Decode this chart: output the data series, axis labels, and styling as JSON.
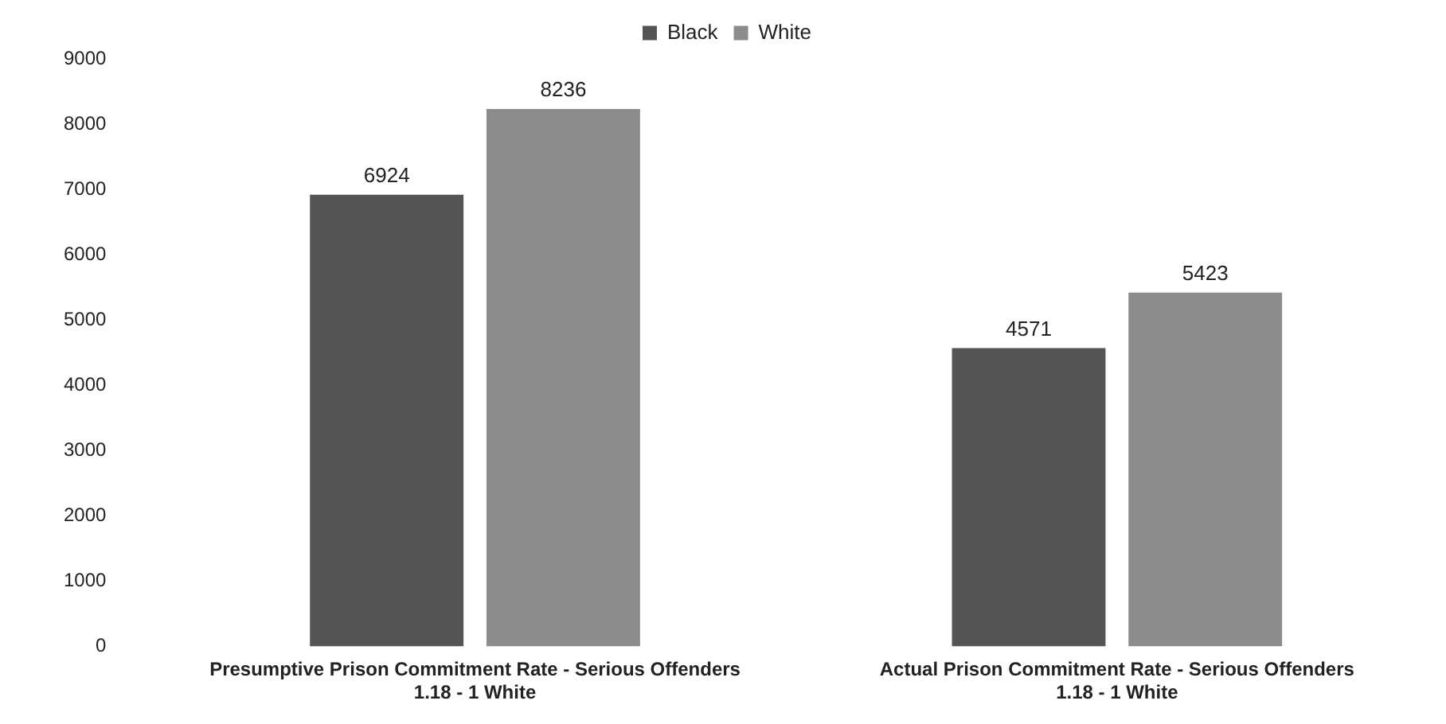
{
  "chart_data": {
    "type": "bar",
    "categories": [
      "Presumptive Prison Commitment Rate - Serious Offenders\n1.18 - 1 White",
      "Actual Prison Commitment Rate - Serious Offenders\n1.18 - 1 White"
    ],
    "series": [
      {
        "name": "Black",
        "color": "#555555",
        "values": [
          6924,
          4571
        ]
      },
      {
        "name": "White",
        "color": "#8c8c8c",
        "values": [
          8236,
          5423
        ]
      }
    ],
    "ylim": [
      0,
      9000
    ],
    "yticks": [
      0,
      1000,
      2000,
      3000,
      4000,
      5000,
      6000,
      7000,
      8000,
      9000
    ],
    "grid": false,
    "legend": "top",
    "data_labels": true
  }
}
